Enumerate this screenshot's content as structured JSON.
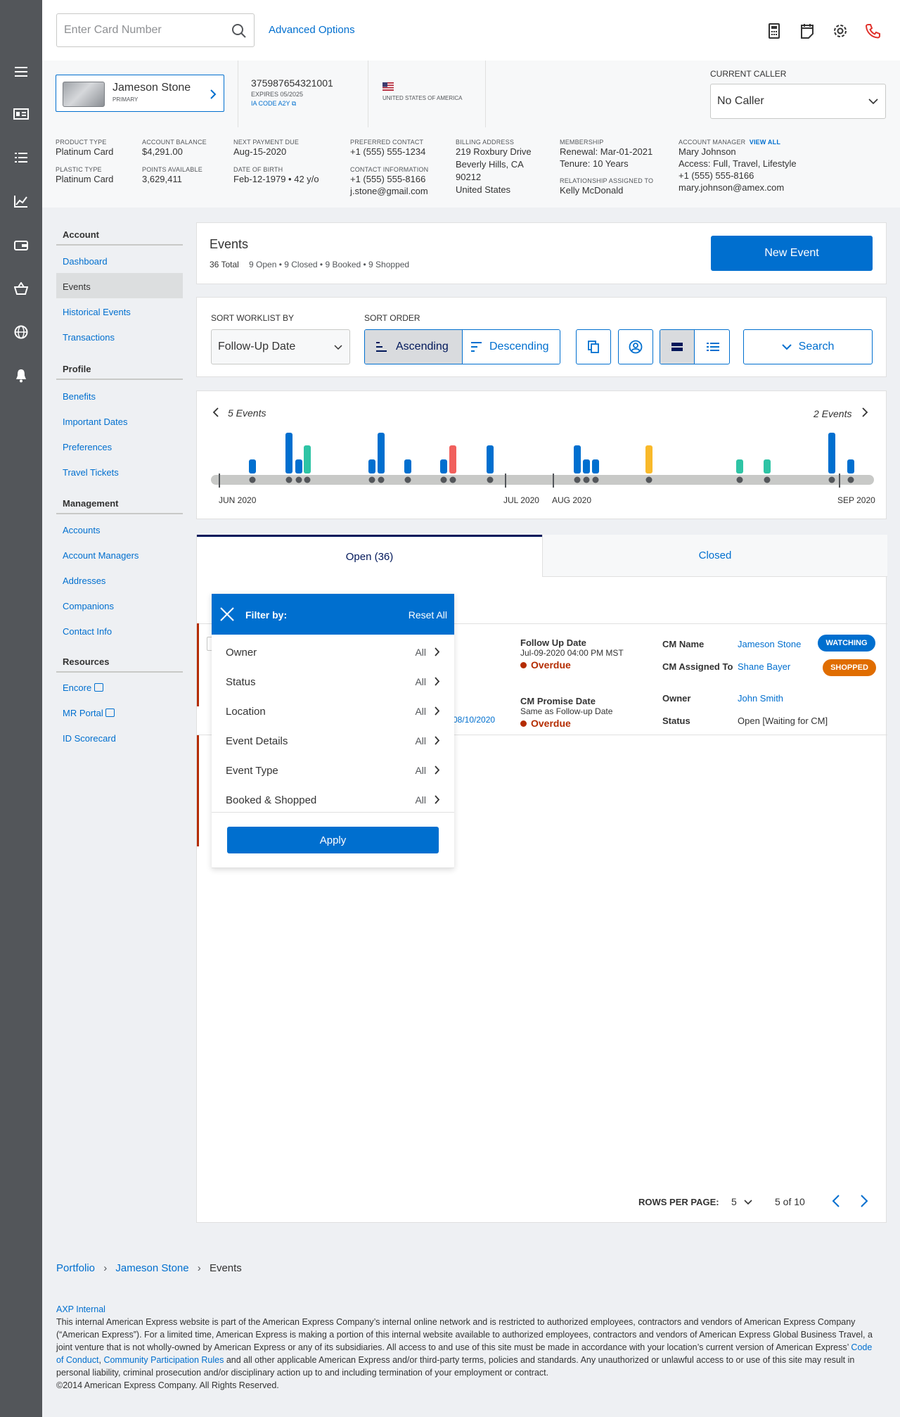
{
  "topbar": {
    "search_placeholder": "Enter Card Number",
    "advanced": "Advanced Options"
  },
  "rail_icons": [
    "menu-icon",
    "cards-icon",
    "list-icon",
    "chart-icon",
    "wallet-icon",
    "basket-icon",
    "globe-icon",
    "bell-icon"
  ],
  "customer": {
    "name": "Jameson Stone",
    "role": "PRIMARY",
    "card_number": "375987654321001",
    "expires": "EXPIRES 05/2025",
    "ia_code": "IA CODE A2Y",
    "country": "UNITED STATES OF AMERICA"
  },
  "caller": {
    "label": "CURRENT CALLER",
    "value": "No Caller"
  },
  "account": {
    "product_type_l": "PRODUCT TYPE",
    "product_type": "Platinum Card",
    "plastic_type_l": "PLASTIC TYPE",
    "plastic_type": "Platinum Card",
    "balance_l": "ACCOUNT BALANCE",
    "balance": "$4,291.00",
    "points_l": "POINTS AVAILABLE",
    "points": "3,629,411",
    "next_due_l": "NEXT PAYMENT DUE",
    "next_due": "Aug-15-2020",
    "dob_l": "DATE OF BIRTH",
    "dob": "Feb-12-1979  • 42 y/o",
    "pref_l": "PREFERRED CONTACT",
    "pref": "+1 (555) 555-1234",
    "contact_l": "CONTACT INFORMATION",
    "contact_phone": "+1 (555) 555-8166",
    "contact_email": "j.stone@gmail.com",
    "billing_l": "BILLING ADDRESS",
    "billing_1": "219 Roxbury Drive",
    "billing_2": "Beverly Hills, CA",
    "billing_3": "90212",
    "billing_4": "United States",
    "membership_l": "MEMBERSHIP",
    "renewal": "Renewal: Mar-01-2021",
    "tenure": "Tenure: 10 Years",
    "rel_l": "RELATIONSHIP ASSIGNED TO",
    "rel": "Kelly McDonald",
    "mgr_l": "ACCOUNT MANAGER",
    "view_all": "VIEW ALL",
    "mgr_name": "Mary Johnson",
    "mgr_access": "Access: Full, Travel, Lifestyle",
    "mgr_phone": "+1 (555) 555-8166",
    "mgr_email": "mary.johnson@amex.com"
  },
  "sidebar": {
    "account_h": "Account",
    "account": [
      "Dashboard",
      "Events",
      "Historical Events",
      "Transactions"
    ],
    "profile_h": "Profile",
    "profile": [
      "Benefits",
      "Important Dates",
      "Preferences",
      "Travel Tickets"
    ],
    "mgmt_h": "Management",
    "mgmt": [
      "Accounts",
      "Account Managers",
      "Addresses",
      "Companions",
      "Contact Info"
    ],
    "res_h": "Resources",
    "res": [
      "Encore",
      "MR Portal",
      "ID Scorecard"
    ]
  },
  "events": {
    "title": "Events",
    "total": "36 Total",
    "summary": "9 Open • 9 Closed • 9 Booked • 9 Shopped",
    "new_btn": "New Event"
  },
  "sort": {
    "by_l": "SORT WORKLIST BY",
    "by": "Follow-Up Date",
    "order_l": "SORT ORDER",
    "asc": "Ascending",
    "desc": "Descending",
    "search": "Search"
  },
  "timeline": {
    "left": "5 Events",
    "right": "2 Events",
    "months": [
      "JUN 2020",
      "JUL 2020",
      "AUG 2020",
      "SEP 2020"
    ]
  },
  "colors": {
    "blue": "#006fcf",
    "teal": "#2ec4a5",
    "red": "#f1605d",
    "yellow": "#f9b92a",
    "orange": "#e06d00",
    "navy": "#00175a"
  },
  "tabs": {
    "open": "Open (36)",
    "closed": "Closed"
  },
  "filter": {
    "title": "Filter by:",
    "reset": "Reset All",
    "rows": [
      {
        "k": "Owner",
        "v": "All"
      },
      {
        "k": "Status",
        "v": "All"
      },
      {
        "k": "Location",
        "v": "All"
      },
      {
        "k": "Event Details",
        "v": "All"
      },
      {
        "k": "Event Type",
        "v": "All"
      },
      {
        "k": "Booked & Shopped",
        "v": "All"
      }
    ],
    "apply": "Apply"
  },
  "event_row": {
    "date_partial": "08/10/2020",
    "fu_l": "Follow Up Date",
    "fu": "Jul-09-2020 04:00 PM MST",
    "overdue": "Overdue",
    "cp_l": "CM Promise Date",
    "cp": "Same as Follow-up Date",
    "overdue2": "Overdue",
    "cm_l": "CM Name",
    "cm": "Jameson Stone",
    "ass_l": "CM Assigned To",
    "ass": "Shane Bayer",
    "own_l": "Owner",
    "own": "John Smith",
    "st_l": "Status",
    "st": "Open [Waiting for CM]",
    "badge1": "WATCHING",
    "badge2": "SHOPPED"
  },
  "pager": {
    "rows_l": "ROWS PER PAGE:",
    "rows": "5",
    "range": "5 of 10"
  },
  "breadcrumb": [
    "Portfolio",
    "Jameson Stone",
    "Events"
  ],
  "footer": {
    "title": "AXP Internal",
    "text1": "This internal American Express website is part of the American Express Company’s internal online network and is restricted to authorized employees, contractors and vendors of American Express Company (“American Express”). For a limited time, American Express is making a portion of this internal website available to authorized employees, contractors and vendors of American Express Global Business Travel, a joint venture that is not wholly-owned by American Express or any of its subsidiaries. All access to and use of this site must be made in accordance with your location’s current version of American Express’",
    "link1": "Code of Conduct",
    "comma": ",",
    "link2": "Community Participation Rules",
    "text2": "and all other applicable American Express and/or third-party terms, policies and standards. Any unauthorized or unlawful access to or use of this site may result in personal liability, criminal prosecution and/or disciplinary action up to and including termination of your employment or contract.",
    "copy": "©2014 American Express Company. All Rights Reserved."
  }
}
